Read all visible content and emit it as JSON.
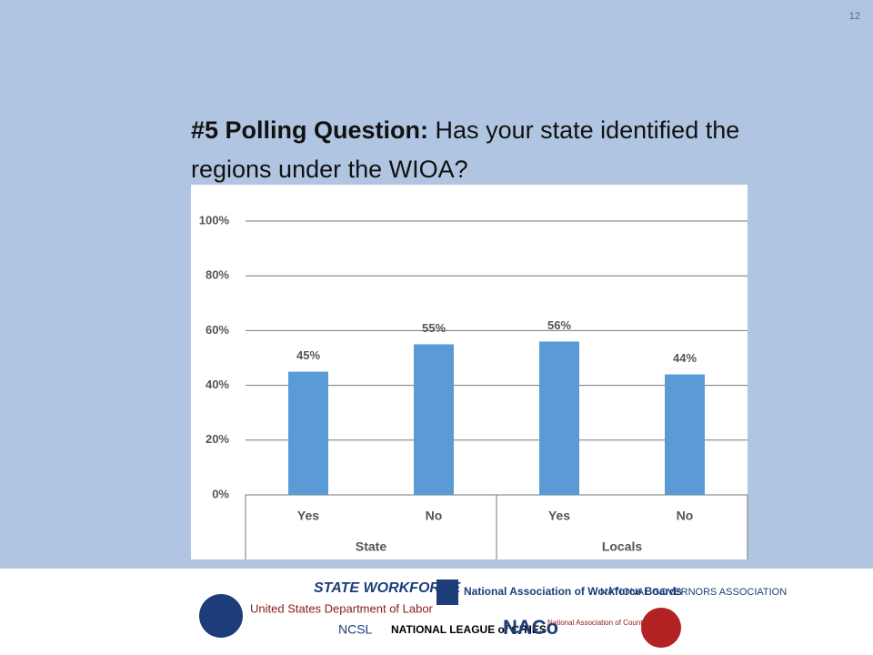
{
  "slide_number": "12",
  "heading": {
    "lead": "#5 Polling Question:",
    "text": "Has your state identified the regions under the WIOA?"
  },
  "chart_data": {
    "type": "bar",
    "categories": [
      "Yes",
      "No",
      "Yes",
      "No"
    ],
    "groups": [
      "State",
      "Locals"
    ],
    "values": [
      45,
      55,
      56,
      44
    ],
    "value_labels": [
      "45%",
      "55%",
      "56%",
      "44%"
    ],
    "color": "#5b9bd5",
    "ylim": [
      0,
      100
    ],
    "yticks": [
      {
        "value": 0,
        "label": "0%"
      },
      {
        "value": 20,
        "label": "20%"
      },
      {
        "value": 40,
        "label": "40%"
      },
      {
        "value": 60,
        "label": "60%"
      },
      {
        "value": 80,
        "label": "80%"
      },
      {
        "value": 100,
        "label": "100%"
      }
    ],
    "grid": true
  },
  "footer": {
    "logos": [
      "United States Department of Labor",
      "STATE WORKFORCE",
      "National Association of Workforce Boards",
      "NATIONAL GOVERNORS ASSOCIATION",
      "NCSL",
      "NATIONAL LEAGUE of CITIES",
      "NACo",
      "National Association of Counties"
    ]
  }
}
